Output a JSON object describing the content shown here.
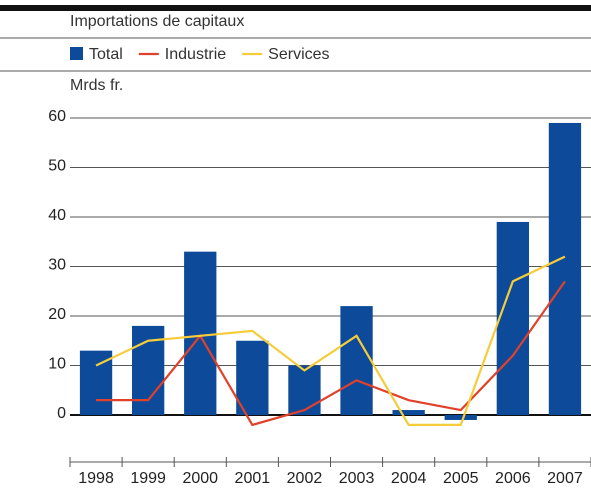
{
  "chart_data": {
    "type": "bar",
    "title": "Importations de capitaux",
    "y_label": "Mrds fr.",
    "categories": [
      "1998",
      "1999",
      "2000",
      "2001",
      "2002",
      "2003",
      "2004",
      "2005",
      "2006",
      "2007"
    ],
    "series": [
      {
        "name": "Total",
        "type": "bar",
        "color": "#0d4a9a",
        "values": [
          13,
          18,
          33,
          15,
          10,
          22,
          1,
          -1,
          39,
          59
        ]
      },
      {
        "name": "Industrie",
        "type": "line",
        "color": "#e0412b",
        "values": [
          3,
          3,
          16,
          -2,
          1,
          7,
          3,
          1,
          12,
          27
        ]
      },
      {
        "name": "Services",
        "type": "line",
        "color": "#f5cc3a",
        "values": [
          10,
          15,
          16,
          17,
          9,
          16,
          -2,
          -2,
          27,
          32
        ]
      }
    ],
    "ylim": [
      -10,
      60
    ],
    "yticks": [
      0,
      10,
      20,
      30,
      40,
      50,
      60
    ],
    "grid": true
  }
}
